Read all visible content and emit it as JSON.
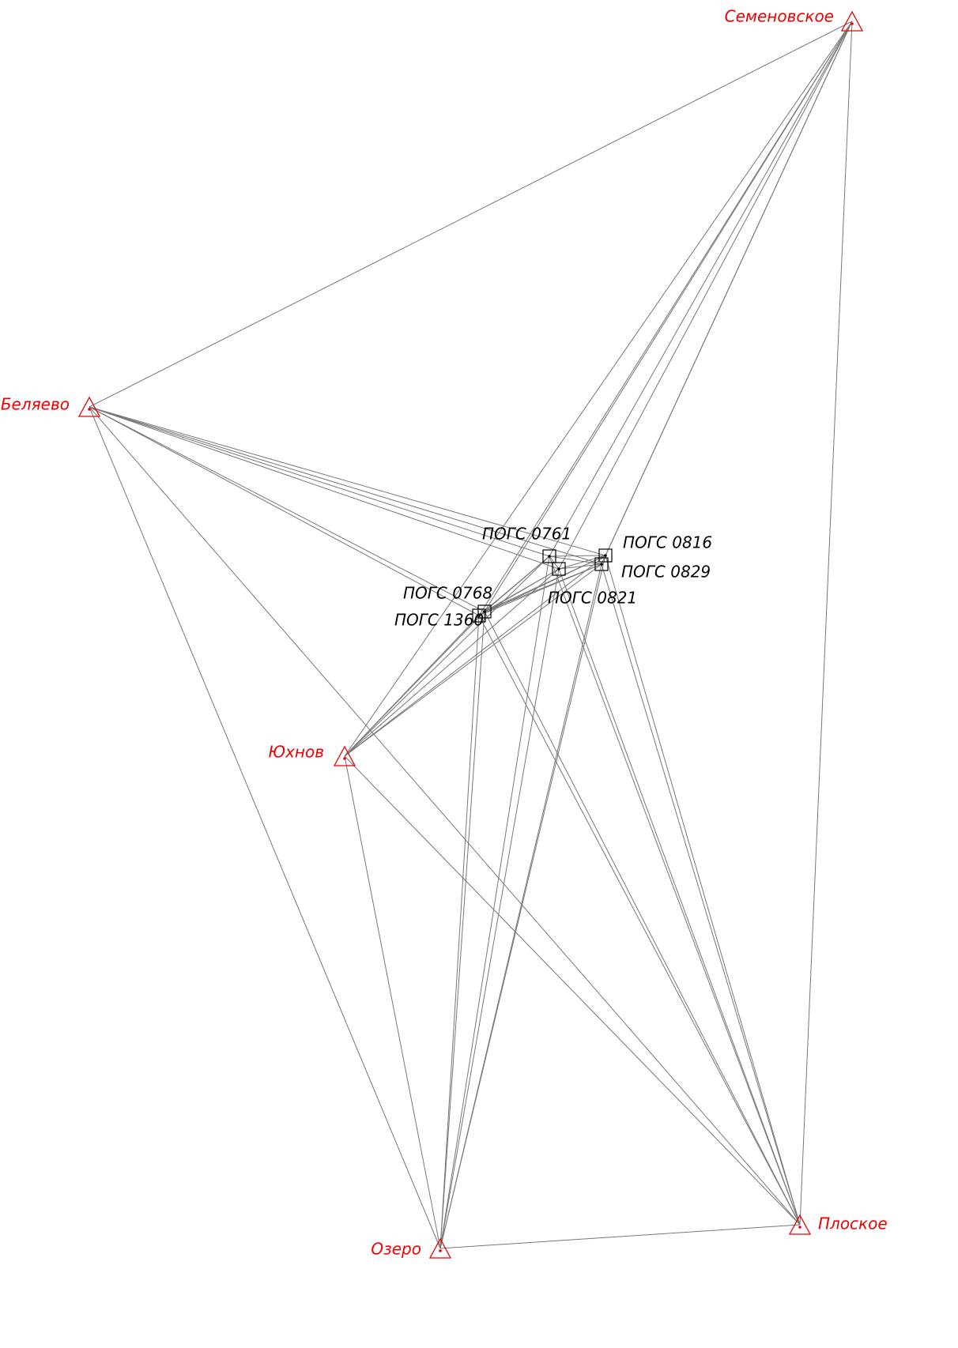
{
  "nodes": [
    {
      "label": "Семеновское"
    },
    {
      "label": "Беляево"
    },
    {
      "label": "Юхнов"
    },
    {
      "label": "Озеро"
    },
    {
      "label": "Плоское"
    },
    {
      "label": "ПОГС 0761"
    },
    {
      "label": "ПОГС 0816"
    },
    {
      "label": "ПОГС 0829"
    },
    {
      "label": "ПОГС 0821"
    },
    {
      "label": "ПОГС 0768"
    },
    {
      "label": "ПОГС 1360"
    }
  ]
}
